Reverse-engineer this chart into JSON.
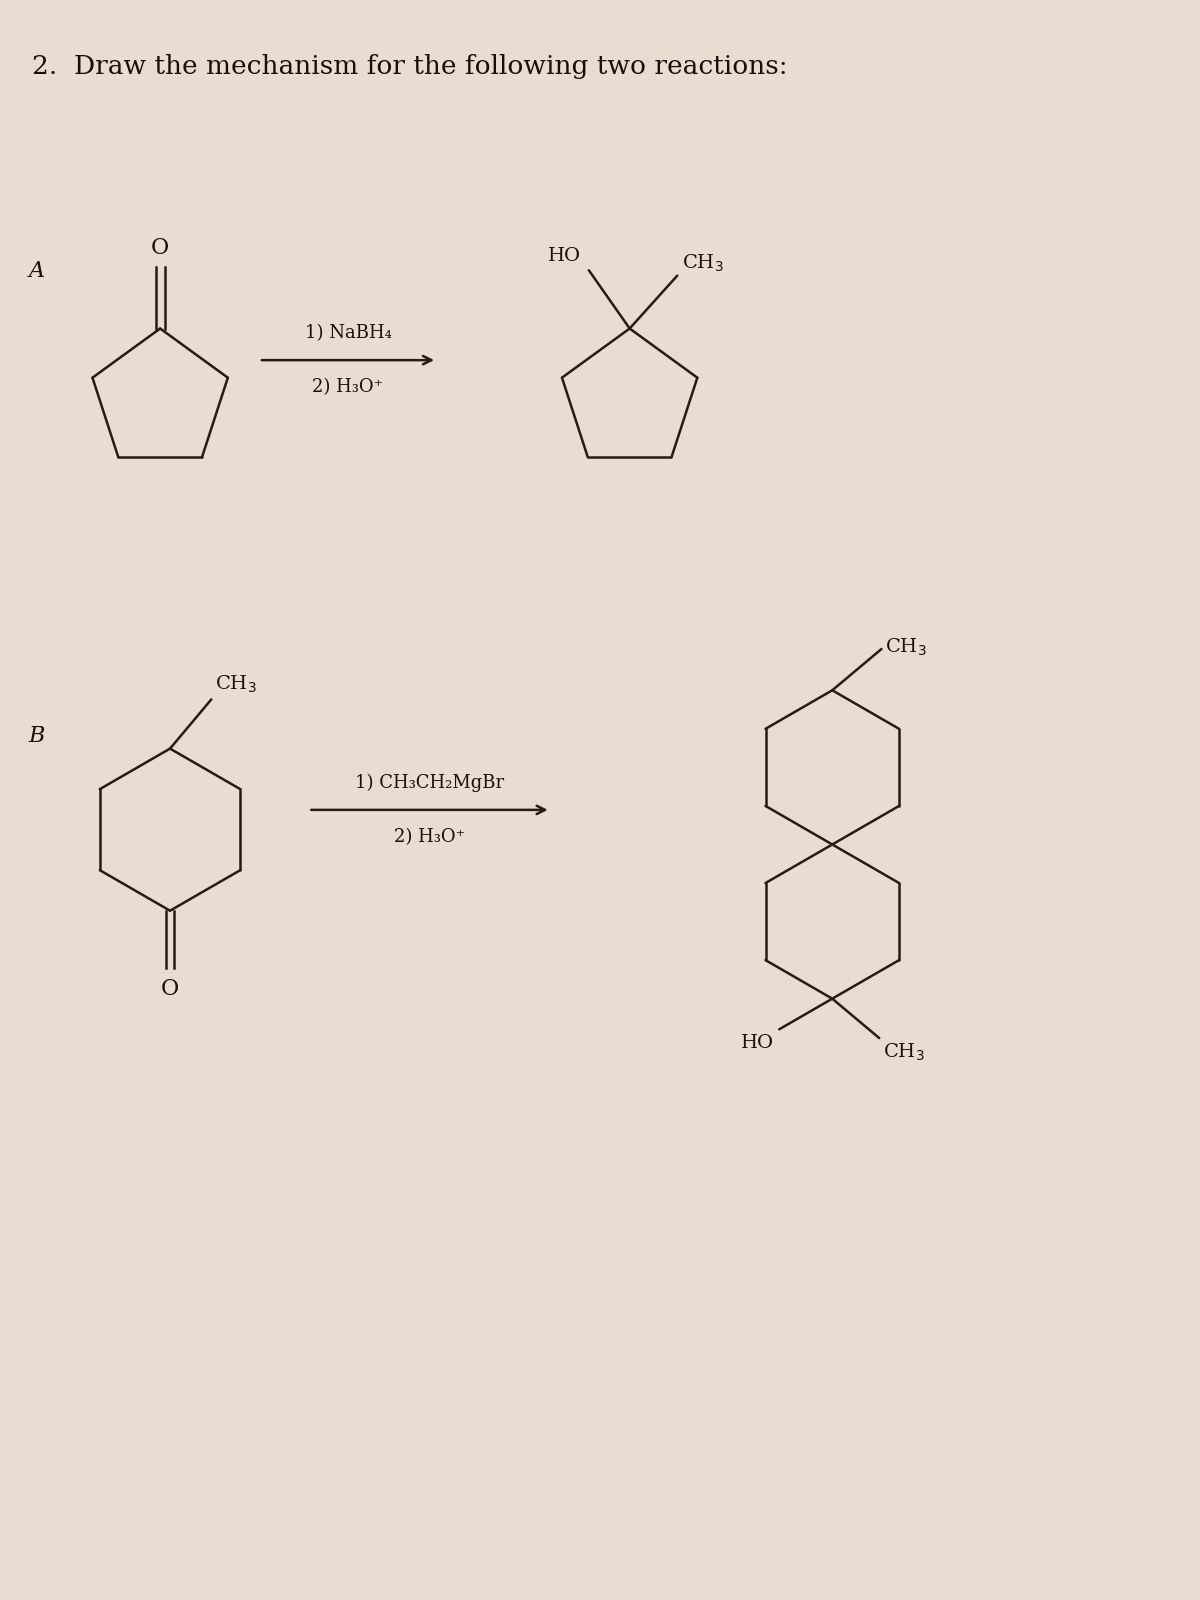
{
  "title": "2.  Draw the mechanism for the following two reactions:",
  "bg_color": "#e8ddd0",
  "line_color": "#2a1a10",
  "text_color": "#1a0e08",
  "label_A": "A",
  "label_B": "B",
  "reagent_A_1": "1) NaBH₄",
  "reagent_A_2": "2) H₃O⁺",
  "reagent_B_1": "1) CH₃CH₂MgBr",
  "reagent_B_2": "2) H₃O⁺",
  "lw": 1.8,
  "font_size_title": 19,
  "font_size_label": 16,
  "font_size_reagent": 13,
  "font_size_mol": 13
}
